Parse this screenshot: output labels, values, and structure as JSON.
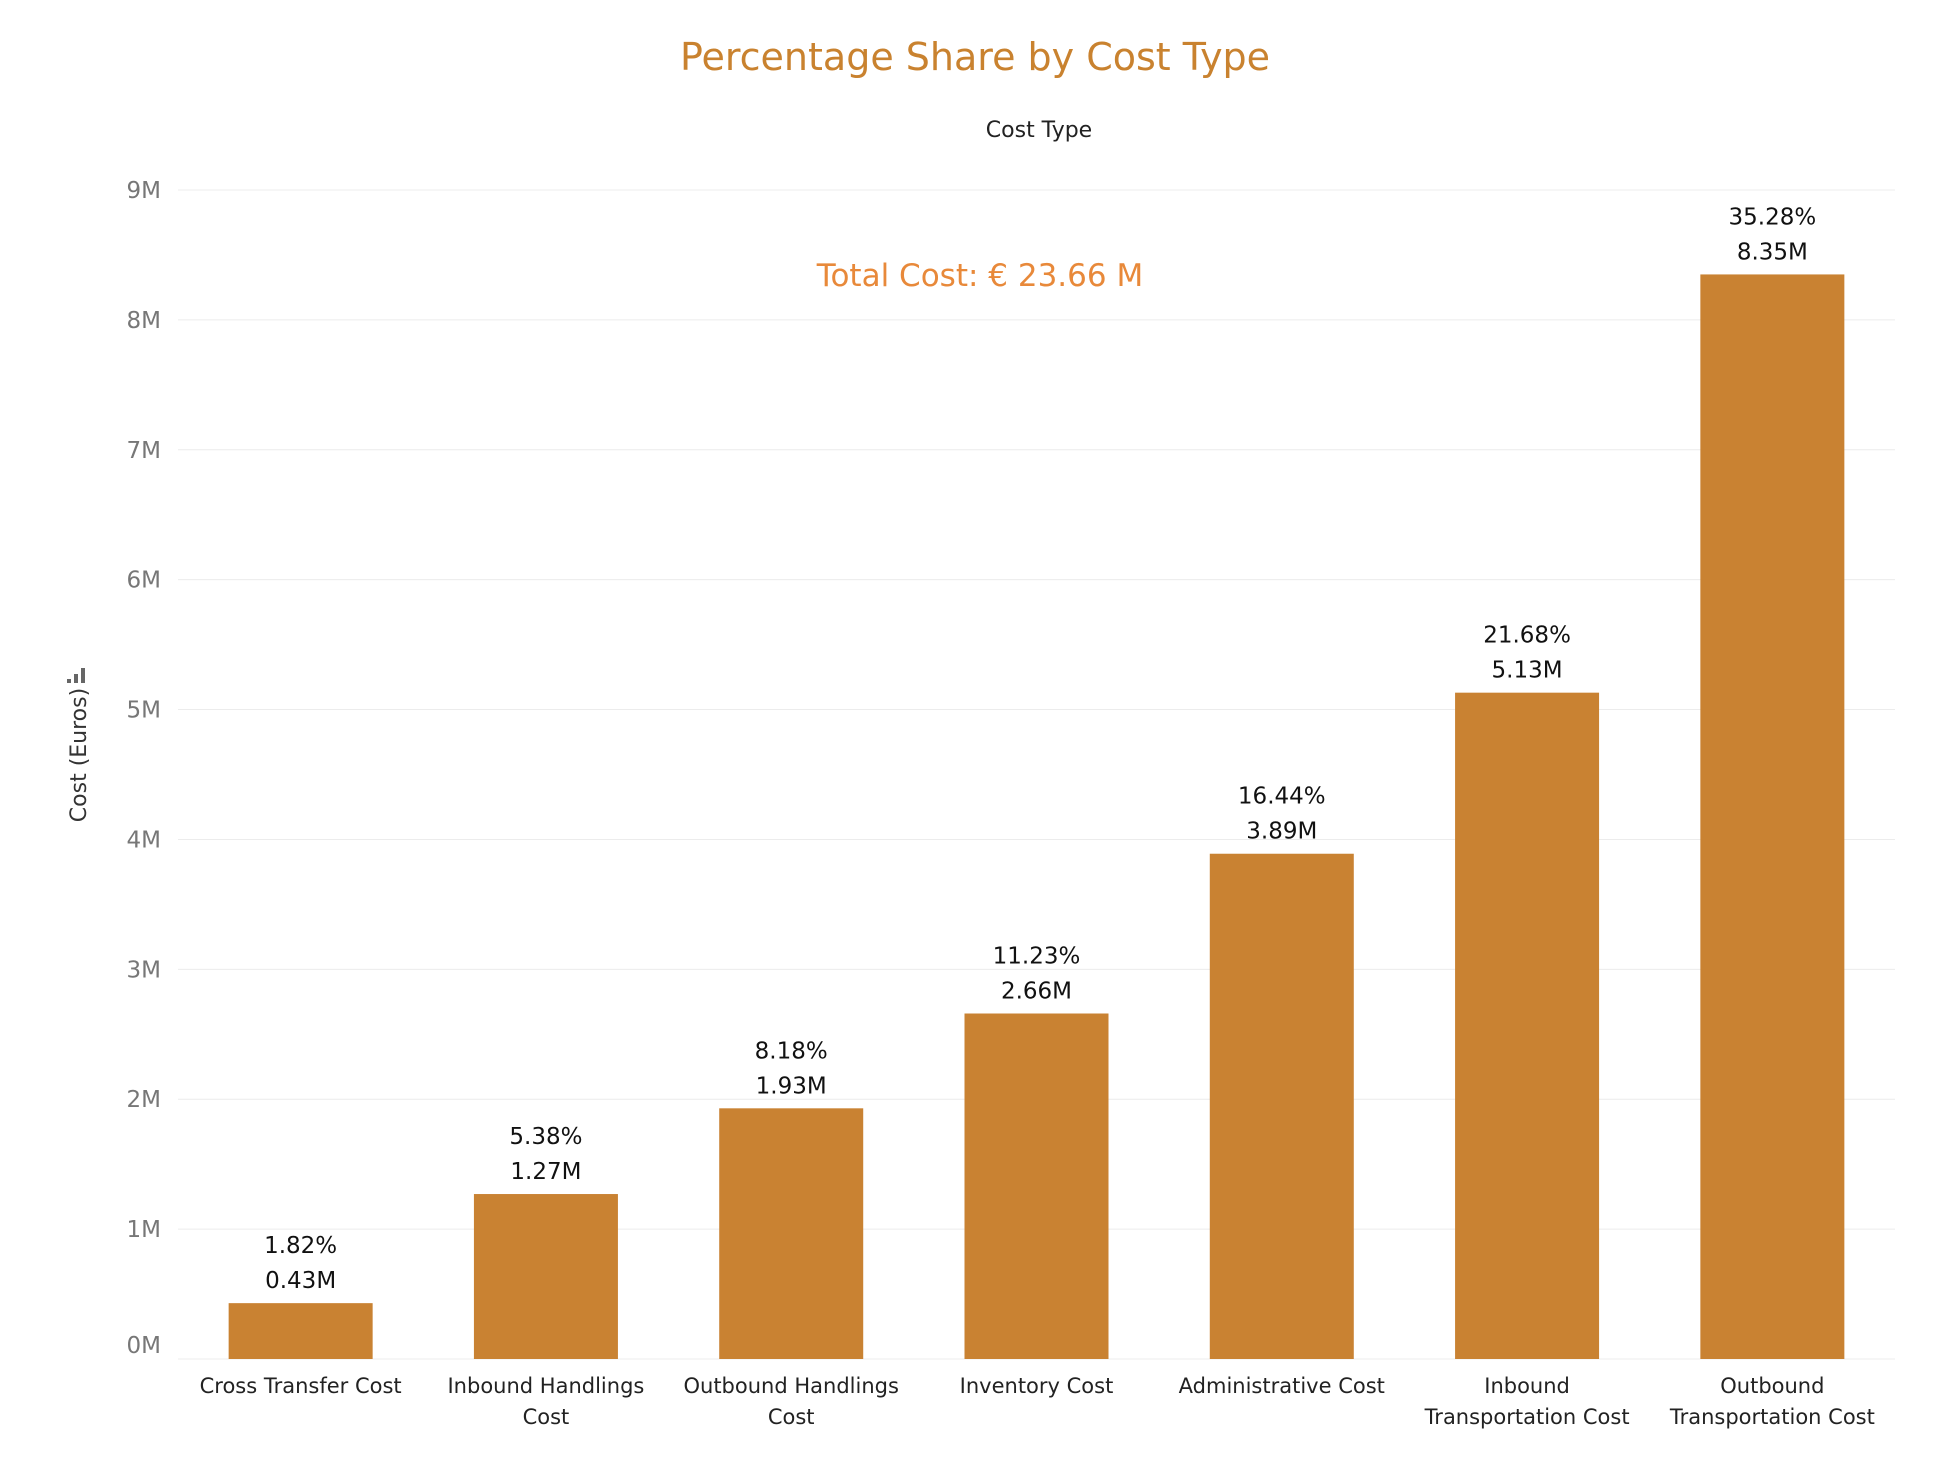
{
  "chart_data": {
    "type": "bar",
    "title": "Percentage Share by Cost Type",
    "column_header": "Cost Type",
    "annotation": "Total  Cost: € 23.66 M",
    "ylabel": "Cost (Euros)",
    "ylabel_icon": "bar-chart-icon",
    "ylim": [
      0,
      9
    ],
    "yticks": [
      0,
      1,
      2,
      3,
      4,
      5,
      6,
      7,
      8,
      9
    ],
    "ytick_labels": [
      "0M",
      "1M",
      "2M",
      "3M",
      "4M",
      "5M",
      "6M",
      "7M",
      "8M",
      "9M"
    ],
    "grid": true,
    "bar_color": "#c98232",
    "categories": [
      [
        "Cross Transfer Cost"
      ],
      [
        "Inbound Handlings",
        "Cost"
      ],
      [
        "Outbound Handlings",
        "Cost"
      ],
      [
        "Inventory Cost"
      ],
      [
        "Administrative Cost"
      ],
      [
        "Inbound",
        "Transportation Cost"
      ],
      [
        "Outbound",
        "Transportation Cost"
      ]
    ],
    "values": [
      0.43,
      1.27,
      1.93,
      2.66,
      3.89,
      5.13,
      8.35
    ],
    "value_labels": [
      "0.43M",
      "1.27M",
      "1.93M",
      "2.66M",
      "3.89M",
      "5.13M",
      "8.35M"
    ],
    "percent_labels": [
      "1.82%",
      "5.38%",
      "8.18%",
      "11.23%",
      "16.44%",
      "21.68%",
      "35.28%"
    ]
  }
}
